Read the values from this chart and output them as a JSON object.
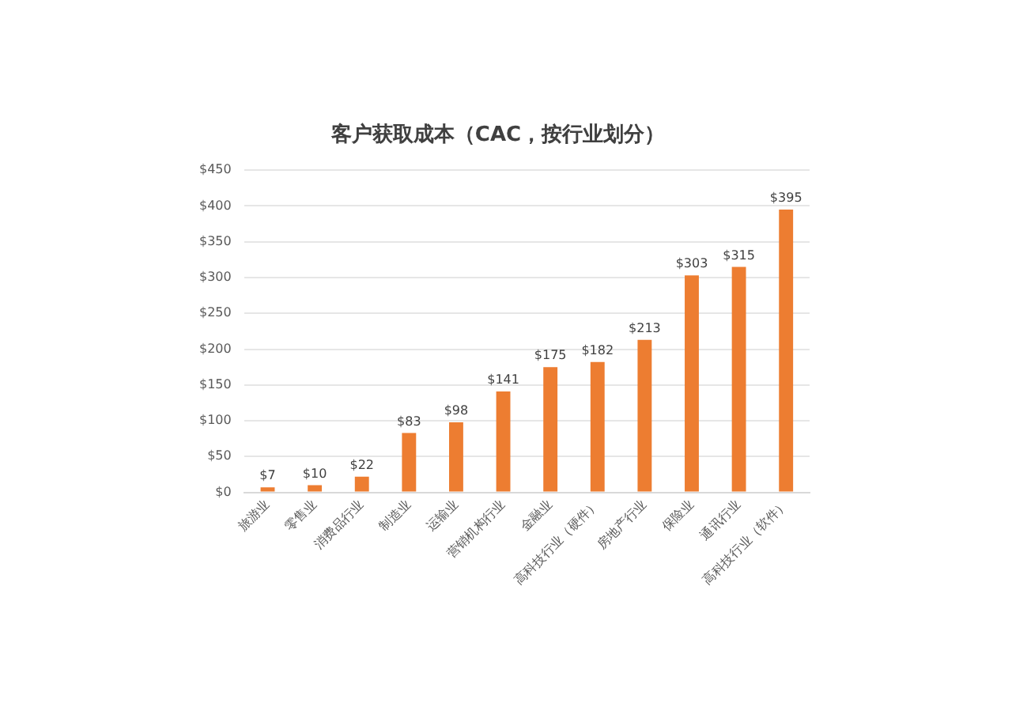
{
  "chart_data": {
    "type": "bar",
    "title": "客户获取成本（CAC，按行业划分）",
    "categories": [
      "旅游业",
      "零售业",
      "消费品行业",
      "制造业",
      "运输业",
      "营销机构行业",
      "金融业",
      "高科技行业（硬件）",
      "房地产行业",
      "保险业",
      "通讯行业",
      "高科技行业（软件）"
    ],
    "values": [
      7,
      10,
      22,
      83,
      98,
      141,
      175,
      182,
      213,
      303,
      315,
      395
    ],
    "value_labels": [
      "$7",
      "$10",
      "$22",
      "$83",
      "$98",
      "$141",
      "$175",
      "$182",
      "$213",
      "$303",
      "$315",
      "$395"
    ],
    "color": "#ed7d31",
    "ylim": [
      0,
      450
    ],
    "yticks": [
      {
        "value": 0,
        "label": "$0"
      },
      {
        "value": 50,
        "label": "$50"
      },
      {
        "value": 100,
        "label": "$100"
      },
      {
        "value": 150,
        "label": "$150"
      },
      {
        "value": 200,
        "label": "$200"
      },
      {
        "value": 250,
        "label": "$250"
      },
      {
        "value": 300,
        "label": "$300"
      },
      {
        "value": 350,
        "label": "$350"
      },
      {
        "value": 400,
        "label": "$400"
      },
      {
        "value": 450,
        "label": "$450"
      }
    ],
    "grid": "y",
    "legend": false
  }
}
